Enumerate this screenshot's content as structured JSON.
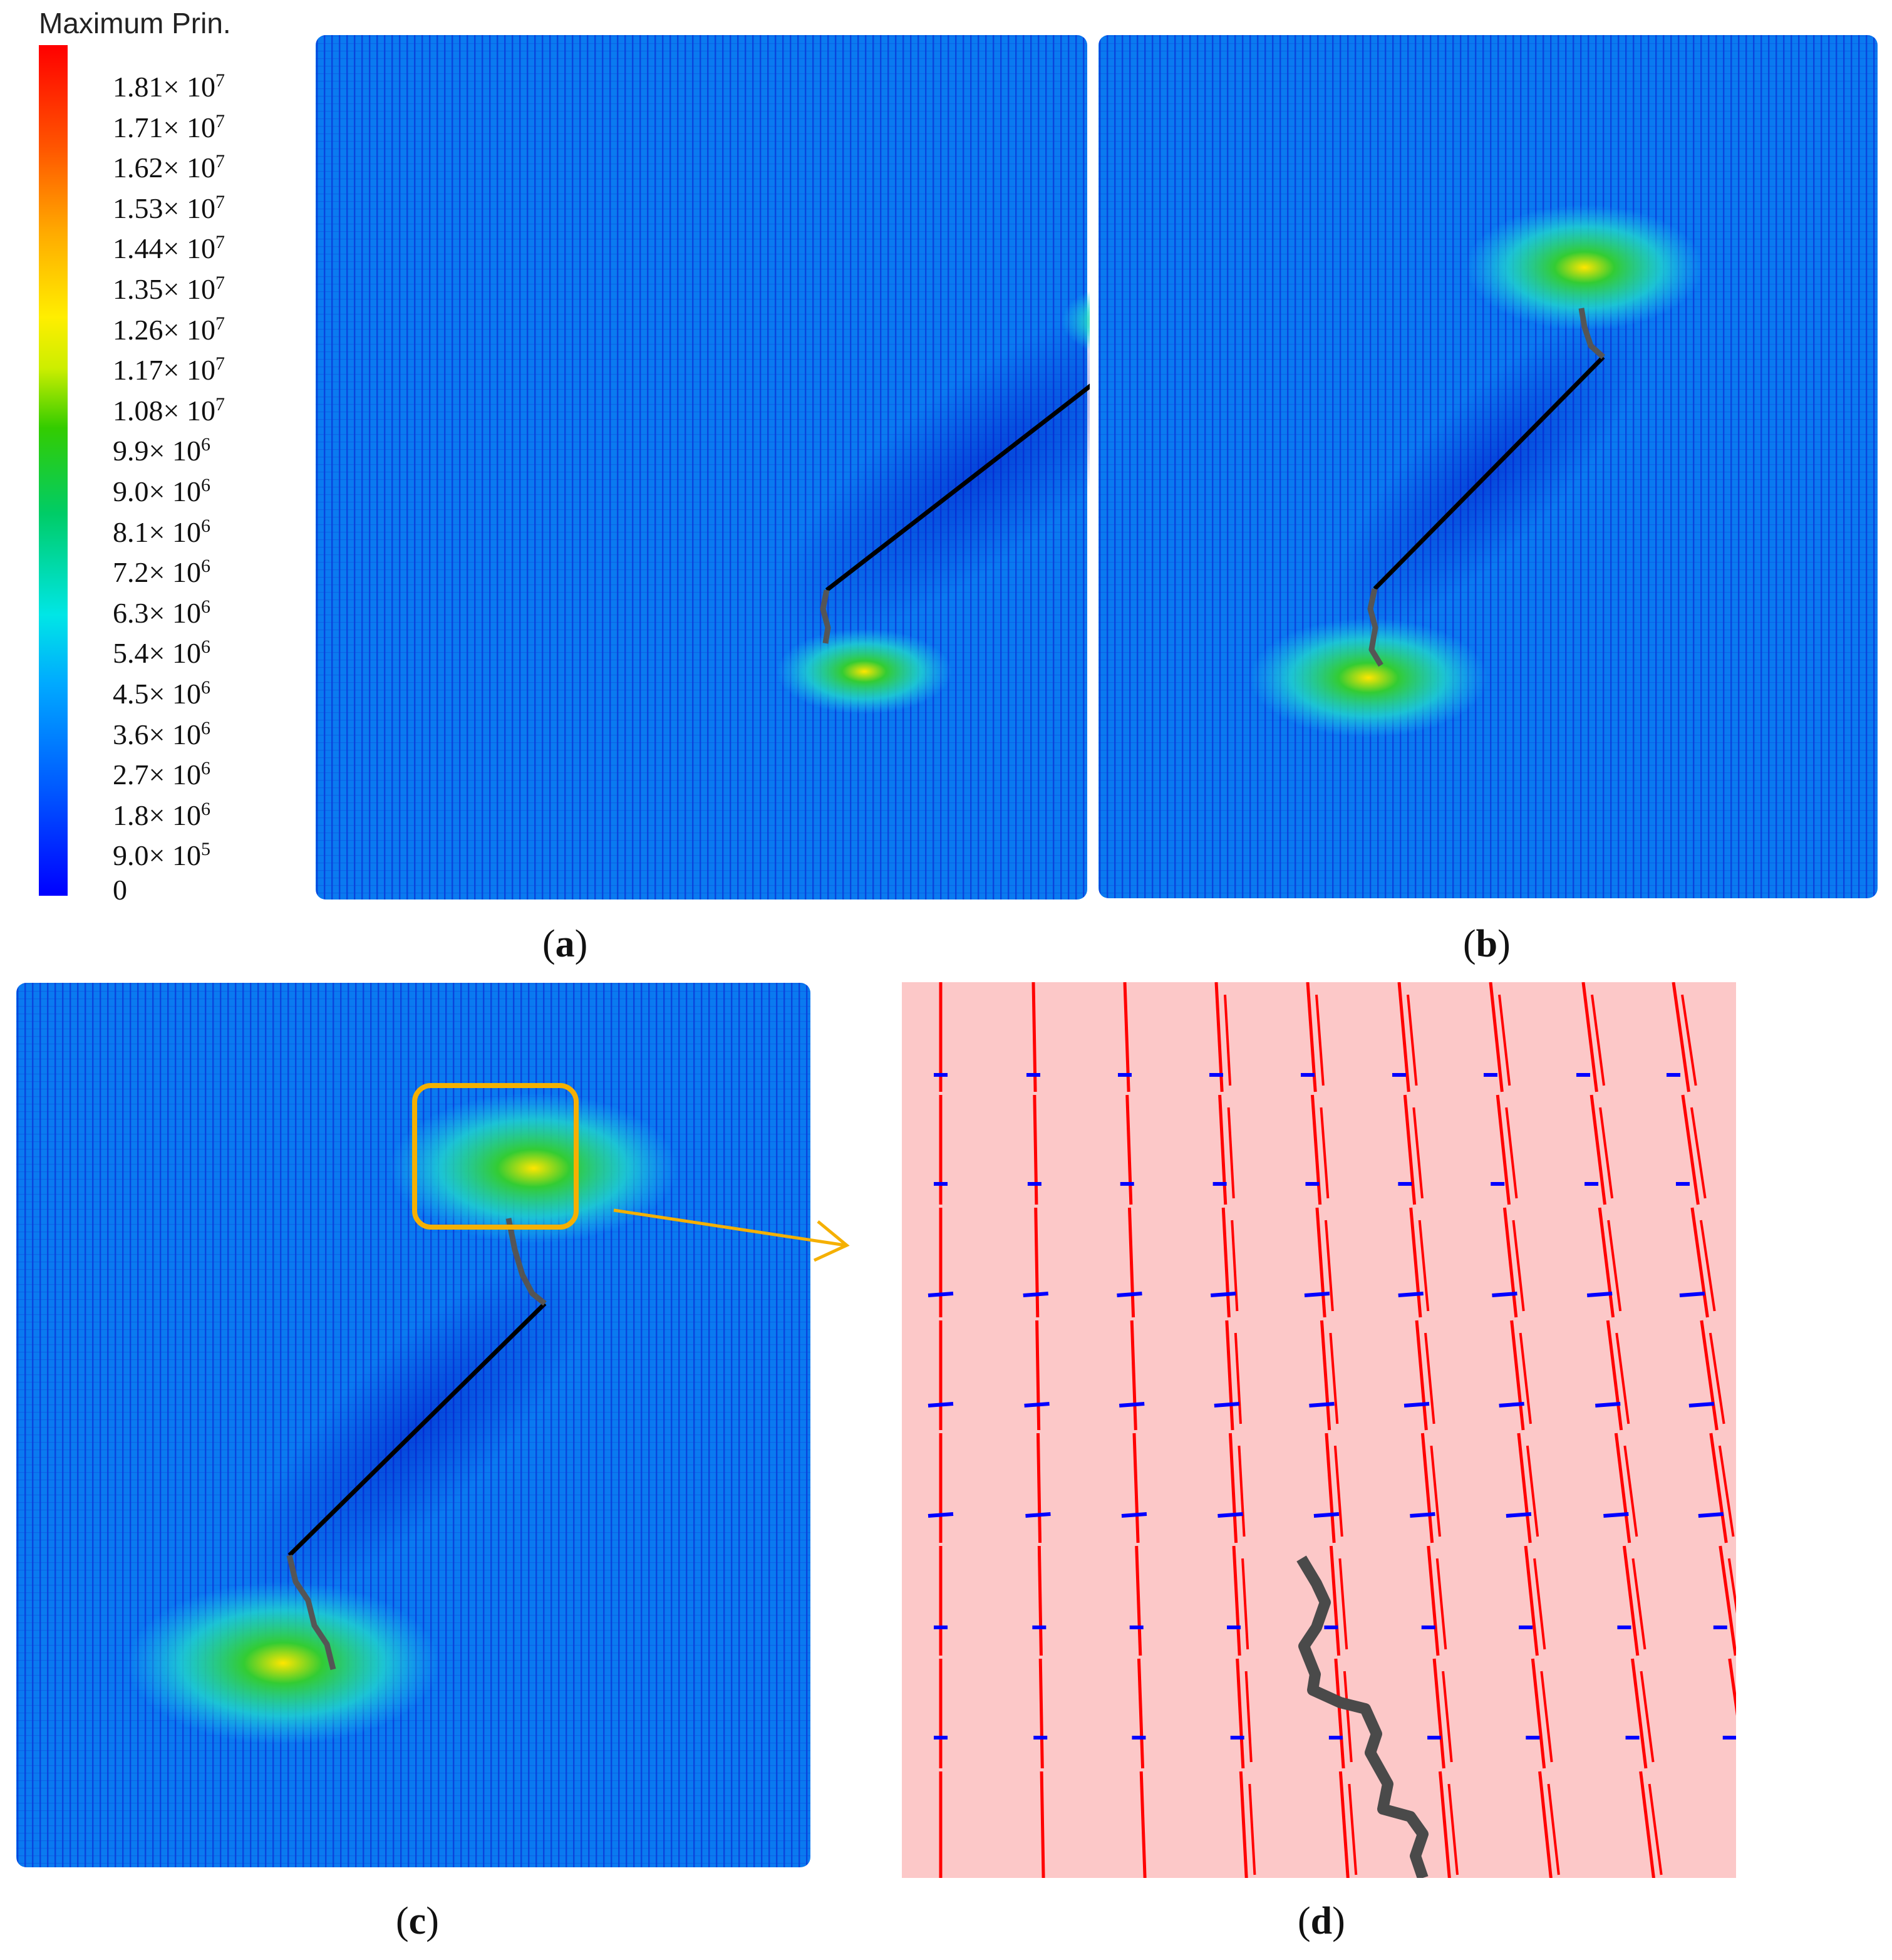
{
  "legend": {
    "title": "Maximum Prin.",
    "ticks": [
      {
        "mant": "1.81",
        "exp": "7"
      },
      {
        "mant": "1.71",
        "exp": "7"
      },
      {
        "mant": "1.62",
        "exp": "7"
      },
      {
        "mant": "1.53",
        "exp": "7"
      },
      {
        "mant": "1.44",
        "exp": "7"
      },
      {
        "mant": "1.35",
        "exp": "7"
      },
      {
        "mant": "1.26",
        "exp": "7"
      },
      {
        "mant": "1.17",
        "exp": "7"
      },
      {
        "mant": "1.08",
        "exp": "7"
      },
      {
        "mant": "9.9",
        "exp": "6"
      },
      {
        "mant": "9.0",
        "exp": "6"
      },
      {
        "mant": "8.1",
        "exp": "6"
      },
      {
        "mant": "7.2",
        "exp": "6"
      },
      {
        "mant": "6.3",
        "exp": "6"
      },
      {
        "mant": "5.4",
        "exp": "6"
      },
      {
        "mant": "4.5",
        "exp": "6"
      },
      {
        "mant": "3.6",
        "exp": "6"
      },
      {
        "mant": "2.7",
        "exp": "6"
      },
      {
        "mant": "1.8",
        "exp": "6"
      },
      {
        "mant": "9.0",
        "exp": "5"
      },
      {
        "mant": "0",
        "exp": ""
      }
    ],
    "colors": {
      "low": "#0000ff",
      "high": "#ff0000"
    }
  },
  "panels": [
    {
      "id": "a",
      "caption": "a"
    },
    {
      "id": "b",
      "caption": "b"
    },
    {
      "id": "c",
      "caption": "c"
    },
    {
      "id": "d",
      "caption": "d"
    }
  ],
  "colors": {
    "specimen": "#0a7af0",
    "grid_dark": "#0a3cd8",
    "flaw": "#000000",
    "crack": "#555555",
    "zoom_box": "#f5b000",
    "zoom_bg": "#fcc8c8",
    "zoom_red": "#ff0000",
    "zoom_blue": "#0000ff"
  }
}
